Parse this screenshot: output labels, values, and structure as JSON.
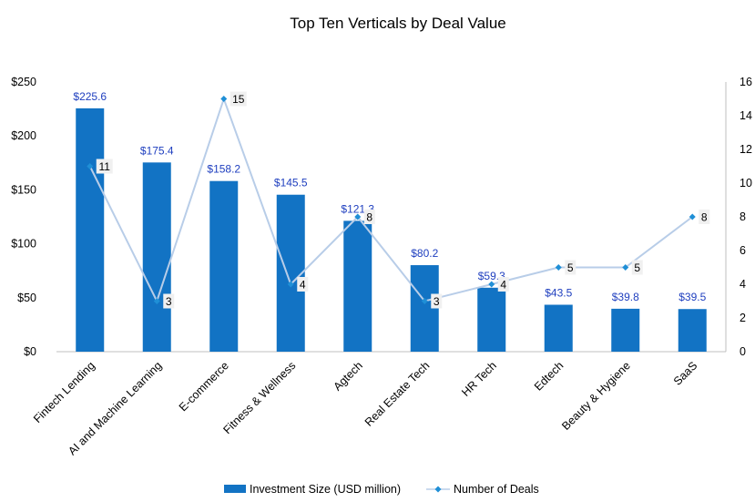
{
  "chart_data": {
    "type": "bar",
    "title": "Top Ten Verticals by Deal Value",
    "categories": [
      "Fintech Lending",
      "AI and Machine Learning",
      "E-commerce",
      "Fitness & Wellness",
      "Agtech",
      "Real Estate Tech",
      "HR Tech",
      "Edtech",
      "Beauty & Hygiene",
      "SaaS"
    ],
    "series": [
      {
        "name": "Investment Size (USD million)",
        "type": "bar",
        "axis": "left",
        "color": "#1273c4",
        "values": [
          225.6,
          175.4,
          158.2,
          145.5,
          121.3,
          80.2,
          59.3,
          43.5,
          39.8,
          39.5
        ],
        "labels": [
          "$225.6",
          "$175.4",
          "$158.2",
          "$145.5",
          "$121.3",
          "$80.2",
          "$59.3",
          "$43.5",
          "$39.8",
          "$39.5"
        ]
      },
      {
        "name": "Number of Deals",
        "type": "line",
        "axis": "right",
        "color": "#b8cde8",
        "marker_color": "#1f8fd6",
        "values": [
          11,
          3,
          15,
          4,
          8,
          3,
          4,
          5,
          5,
          8
        ],
        "labels": [
          "11",
          "3",
          "15",
          "4",
          "8",
          "3",
          "4",
          "5",
          "5",
          "8"
        ]
      }
    ],
    "y_left": {
      "min": 0,
      "max": 250,
      "ticks": [
        0,
        50,
        100,
        150,
        200,
        250
      ],
      "tick_labels": [
        "$0",
        "$50",
        "$100",
        "$150",
        "$200",
        "$250"
      ]
    },
    "y_right": {
      "min": 0,
      "max": 16,
      "ticks": [
        0,
        2,
        4,
        6,
        8,
        10,
        12,
        14,
        16
      ],
      "tick_labels": [
        "0",
        "2",
        "4",
        "6",
        "8",
        "10",
        "12",
        "14",
        "16"
      ]
    },
    "grid": false,
    "legend_position": "bottom"
  }
}
